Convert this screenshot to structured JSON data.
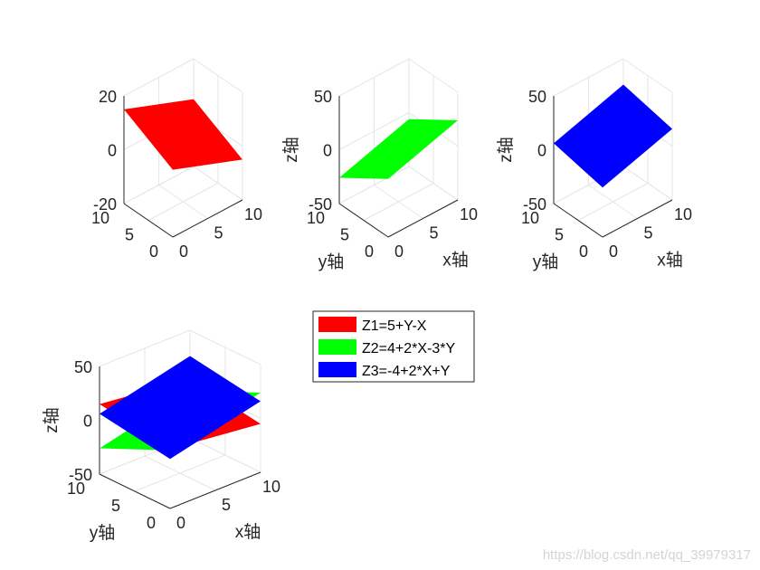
{
  "chart_data": [
    {
      "type": "surface",
      "title": "",
      "xlabel": "",
      "ylabel": "",
      "zlabel": "",
      "xlim": [
        0,
        10
      ],
      "ylim": [
        0,
        10
      ],
      "zlim": [
        -20,
        20
      ],
      "xticks": [
        "0",
        "5",
        "10"
      ],
      "yticks": [
        "0",
        "5",
        "10"
      ],
      "zticks": [
        "-20",
        "0",
        "20"
      ],
      "grid": true,
      "series": [
        {
          "equation": "5+Y-X",
          "color": "#ff0000"
        }
      ]
    },
    {
      "type": "surface",
      "title": "",
      "xlabel": "x轴",
      "ylabel": "y轴",
      "zlabel": "z轴",
      "xlim": [
        0,
        10
      ],
      "ylim": [
        0,
        10
      ],
      "zlim": [
        -50,
        50
      ],
      "xticks": [
        "0",
        "5",
        "10"
      ],
      "yticks": [
        "0",
        "5",
        "10"
      ],
      "zticks": [
        "-50",
        "0",
        "50"
      ],
      "grid": true,
      "series": [
        {
          "equation": "4+2*X-3*Y",
          "color": "#00ff00"
        }
      ]
    },
    {
      "type": "surface",
      "title": "",
      "xlabel": "x轴",
      "ylabel": "y轴",
      "zlabel": "z轴",
      "xlim": [
        0,
        10
      ],
      "ylim": [
        0,
        10
      ],
      "zlim": [
        -50,
        50
      ],
      "xticks": [
        "0",
        "5",
        "10"
      ],
      "yticks": [
        "0",
        "5",
        "10"
      ],
      "zticks": [
        "-50",
        "0",
        "50"
      ],
      "grid": true,
      "series": [
        {
          "equation": "-4+2*X+Y",
          "color": "#0000ff"
        }
      ]
    },
    {
      "type": "surface",
      "title": "",
      "xlabel": "x轴",
      "ylabel": "y轴",
      "zlabel": "z轴",
      "xlim": [
        0,
        10
      ],
      "ylim": [
        0,
        10
      ],
      "zlim": [
        -50,
        50
      ],
      "xticks": [
        "0",
        "5",
        "10"
      ],
      "yticks": [
        "0",
        "5",
        "10"
      ],
      "zticks": [
        "-50",
        "0",
        "50"
      ],
      "grid": true,
      "series": [
        {
          "name": "Z1=5+Y-X",
          "equation": "5+Y-X",
          "color": "#ff0000"
        },
        {
          "name": "Z2=4+2*X-3*Y",
          "equation": "4+2*X-3*Y",
          "color": "#00ff00"
        },
        {
          "name": "Z3=-4+2*X+Y",
          "equation": "-4+2*X+Y",
          "color": "#0000ff"
        }
      ]
    }
  ],
  "legend": {
    "placement": "right of bottom-left panel",
    "entries": [
      {
        "label": "Z1=5+Y-X",
        "color": "#ff0000"
      },
      {
        "label": "Z2=4+2*X-3*Y",
        "color": "#00ff00"
      },
      {
        "label": "Z3=-4+2*X+Y",
        "color": "#0000ff"
      }
    ]
  },
  "watermark": "https://blog.csdn.net/qq_39979317"
}
